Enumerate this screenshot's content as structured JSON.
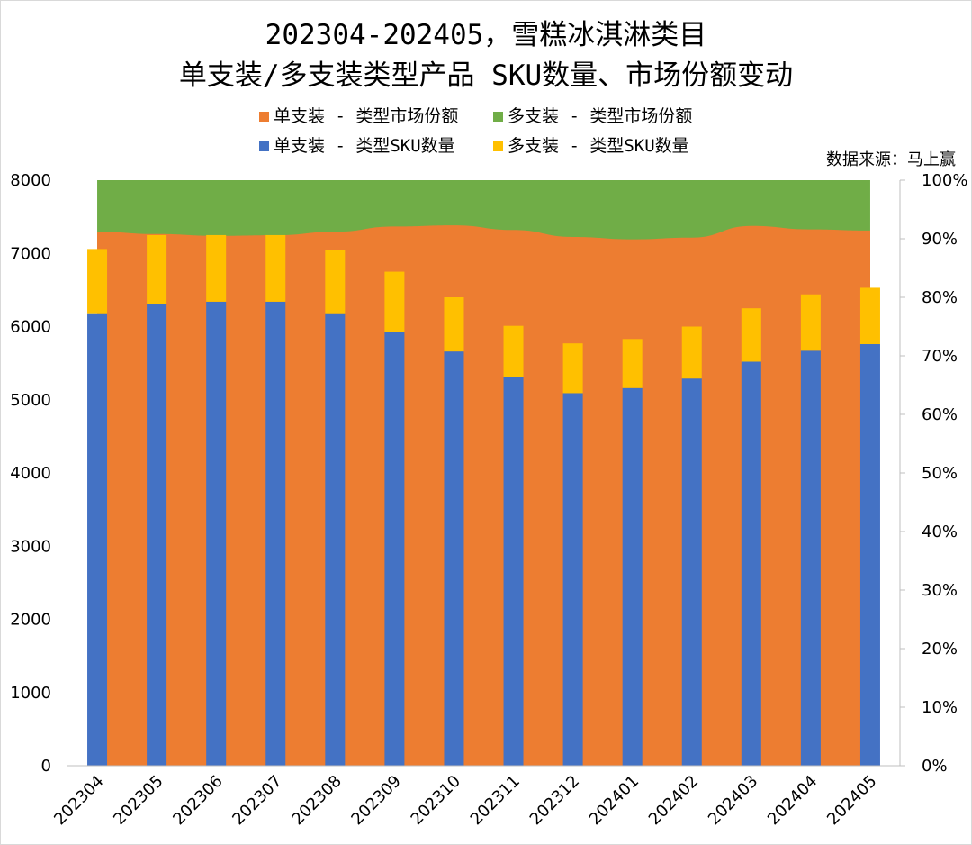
{
  "chart_data": {
    "type": "bar",
    "title_lines": [
      "202304-202405，雪糕冰淇淋类目",
      "单支装/多支装类型产品 SKU数量、市场份额变动"
    ],
    "source": "数据来源：马上赢",
    "categories": [
      "202304",
      "202305",
      "202306",
      "202307",
      "202308",
      "202309",
      "202310",
      "202311",
      "202312",
      "202401",
      "202402",
      "202403",
      "202404",
      "202405"
    ],
    "series": [
      {
        "name": "单支装 - 类型市场份额",
        "kind": "area",
        "axis": "right",
        "color": "#ED7D31",
        "values": [
          91.2,
          90.8,
          90.5,
          90.6,
          91.2,
          92.1,
          92.3,
          91.5,
          90.3,
          89.9,
          90.2,
          92.2,
          91.6,
          91.4
        ]
      },
      {
        "name": "多支装 - 类型市场份额",
        "kind": "area",
        "axis": "right",
        "color": "#70AD47",
        "values": [
          8.8,
          9.2,
          9.5,
          9.4,
          8.8,
          7.9,
          7.7,
          8.5,
          9.7,
          10.1,
          9.8,
          7.8,
          8.4,
          8.6
        ]
      },
      {
        "name": "单支装 - 类型SKU数量",
        "kind": "bar",
        "axis": "left",
        "color": "#4472C4",
        "values": [
          6170,
          6310,
          6340,
          6340,
          6170,
          5930,
          5660,
          5310,
          5090,
          5160,
          5290,
          5520,
          5670,
          5760
        ]
      },
      {
        "name": "多支装 - 类型SKU数量",
        "kind": "bar",
        "axis": "left",
        "color": "#FFC000",
        "values": [
          890,
          940,
          910,
          910,
          880,
          820,
          740,
          700,
          680,
          670,
          710,
          730,
          770,
          770
        ]
      }
    ],
    "left_axis": {
      "min": 0,
      "max": 8000,
      "step": 1000,
      "tick_labels": [
        "0",
        "1000",
        "2000",
        "3000",
        "4000",
        "5000",
        "6000",
        "7000",
        "8000"
      ]
    },
    "right_axis": {
      "min": 0,
      "max": 100,
      "step": 10,
      "tick_labels": [
        "0%",
        "10%",
        "20%",
        "30%",
        "40%",
        "50%",
        "60%",
        "70%",
        "80%",
        "90%",
        "100%"
      ]
    },
    "legend_position": "top"
  }
}
